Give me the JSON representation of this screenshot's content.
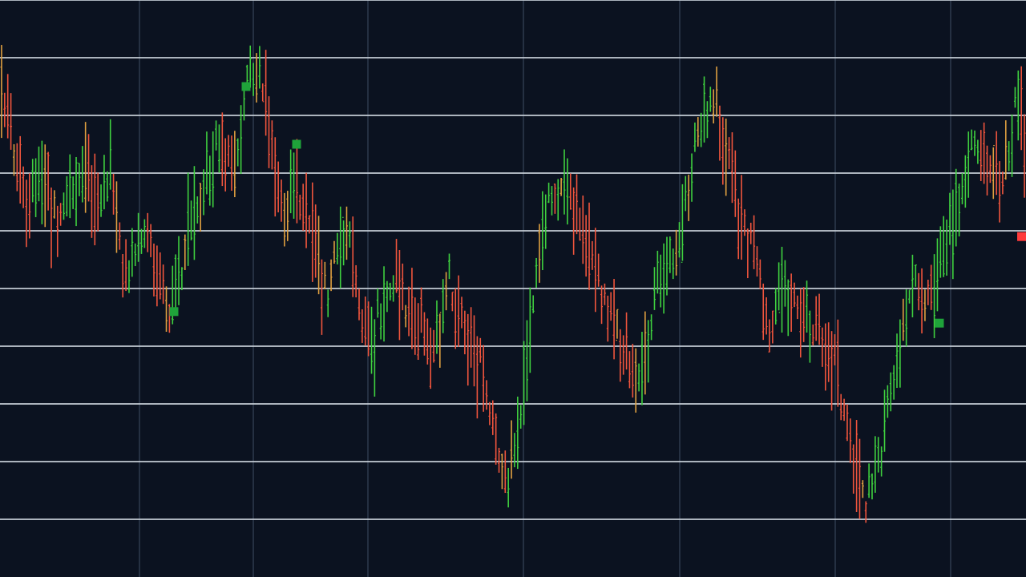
{
  "chart_data": {
    "type": "line",
    "chart_style": "ohlc-bars",
    "title": "",
    "xlabel": "",
    "ylabel": "",
    "grid": true,
    "legend": "none",
    "xlim": [
      0,
      128
    ],
    "ylim": [
      0,
      10
    ],
    "grid_y": [
      1,
      2,
      3,
      4,
      5,
      6,
      7,
      8,
      9,
      10
    ],
    "grid_x": [
      17.4,
      31.6,
      45.9,
      65.3,
      84.8,
      104.2,
      118.6
    ],
    "path_points": [
      [
        0,
        8.8
      ],
      [
        1.5,
        7.6
      ],
      [
        3.5,
        6.4
      ],
      [
        5,
        6.9
      ],
      [
        7.5,
        6.2
      ],
      [
        10,
        7.2
      ],
      [
        12,
        6.5
      ],
      [
        14,
        7.0
      ],
      [
        15.5,
        5.2
      ],
      [
        18,
        6.0
      ],
      [
        21,
        4.6
      ],
      [
        24,
        6.1
      ],
      [
        27,
        7.5
      ],
      [
        29,
        7.0
      ],
      [
        31,
        8.6
      ],
      [
        32.5,
        9.0
      ],
      [
        33.5,
        7.7
      ],
      [
        35.5,
        6.4
      ],
      [
        36.5,
        6.9
      ],
      [
        38.5,
        6.0
      ],
      [
        40.5,
        4.9
      ],
      [
        43.5,
        6.0
      ],
      [
        46,
        4.0
      ],
      [
        49,
        5.2
      ],
      [
        52,
        4.4
      ],
      [
        54,
        3.9
      ],
      [
        56,
        5.2
      ],
      [
        58,
        4.2
      ],
      [
        60,
        3.6
      ],
      [
        62,
        2.2
      ],
      [
        63,
        1.5
      ],
      [
        64.5,
        2.3
      ],
      [
        66,
        4.2
      ],
      [
        68,
        6.5
      ],
      [
        71,
        6.7
      ],
      [
        74,
        5.6
      ],
      [
        76,
        4.5
      ],
      [
        78,
        3.8
      ],
      [
        80,
        3.6
      ],
      [
        82,
        5.1
      ],
      [
        85,
        5.9
      ],
      [
        86.5,
        7.4
      ],
      [
        89,
        8.4
      ],
      [
        91,
        7.2
      ],
      [
        92,
        6.4
      ],
      [
        94,
        5.7
      ],
      [
        96,
        4.1
      ],
      [
        98,
        5.0
      ],
      [
        100,
        4.5
      ],
      [
        102,
        4.4
      ],
      [
        104,
        3.8
      ],
      [
        106,
        2.3
      ],
      [
        108,
        1.3
      ],
      [
        110,
        2.3
      ],
      [
        112,
        4.0
      ],
      [
        114,
        5.2
      ],
      [
        116,
        4.8
      ],
      [
        118,
        5.8
      ],
      [
        120,
        6.6
      ],
      [
        122,
        7.7
      ],
      [
        125,
        6.6
      ],
      [
        127,
        8.4
      ],
      [
        128,
        7.0
      ]
    ],
    "bar_count": 330,
    "seed": 7,
    "markers": [
      {
        "x": 30.7,
        "y": 8.5,
        "type": "buy"
      },
      {
        "x": 37.0,
        "y": 7.5,
        "type": "buy"
      },
      {
        "x": 21.7,
        "y": 4.6,
        "type": "buy"
      },
      {
        "x": 117.2,
        "y": 4.4,
        "type": "buy"
      },
      {
        "x": 127.5,
        "y": 5.9,
        "type": "sell"
      }
    ],
    "colors": {
      "background": "#0b1220",
      "gridline": "#c9d1d9",
      "vertical_gridline": "#2e3a4d",
      "bullish": "#3fd13f",
      "bearish": "#f0553d",
      "neutral": "#e0a040",
      "buy_marker": "#1fa33a",
      "sell_marker": "#ff3b3b"
    }
  }
}
